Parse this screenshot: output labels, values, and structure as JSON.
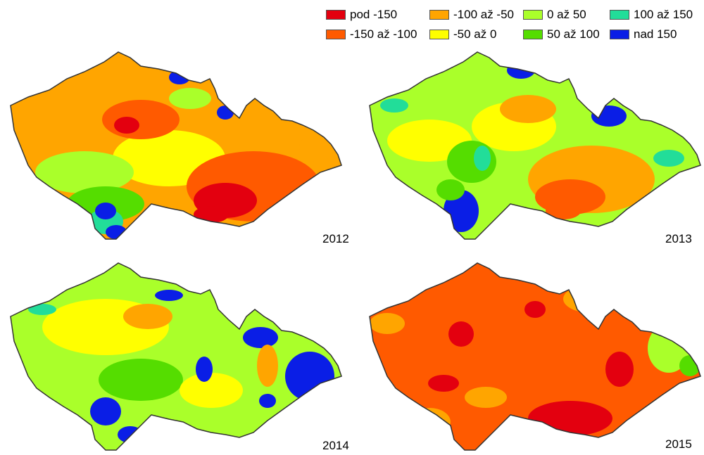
{
  "legend": {
    "items": [
      {
        "label": "pod -150",
        "color": "#e3000f"
      },
      {
        "label": "-150 až -100",
        "color": "#ff5a00"
      },
      {
        "label": "-100 až -50",
        "color": "#ffa500"
      },
      {
        "label": "-50 až 0",
        "color": "#ffff00"
      },
      {
        "label": "0 až 50",
        "color": "#aaff2a"
      },
      {
        "label": "50 až 100",
        "color": "#55dd00"
      },
      {
        "label": "100 až 150",
        "color": "#22dd99"
      },
      {
        "label": "nad 150",
        "color": "#0a1ee6"
      }
    ]
  },
  "maps": [
    {
      "year": "2012"
    },
    {
      "year": "2013"
    },
    {
      "year": "2014"
    },
    {
      "year": "2015"
    }
  ]
}
